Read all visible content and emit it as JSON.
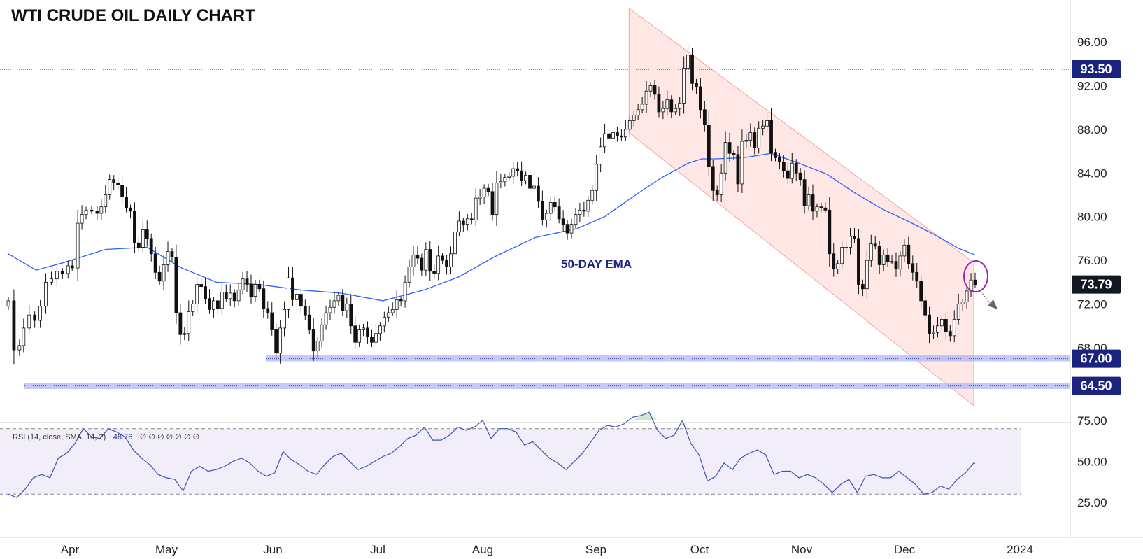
{
  "title": "WTI CRUDE OIL DAILY CHART",
  "chart_data": {
    "type": "candlestick",
    "title": "WTI CRUDE OIL DAILY CHART",
    "price_axis": {
      "ticks": [
        "96.00",
        "92.00",
        "88.00",
        "84.00",
        "80.00",
        "76.00",
        "72.00",
        "68.00"
      ]
    },
    "time_axis": {
      "ticks": [
        "Apr",
        "May",
        "Jun",
        "Jul",
        "Aug",
        "Sep",
        "Oct",
        "Nov",
        "Dec",
        "2024"
      ]
    },
    "levels": [
      {
        "label": "93.50",
        "value": 93.5
      },
      {
        "label": "67.00",
        "value": 67.0
      },
      {
        "label": "64.50",
        "value": 64.5
      }
    ],
    "last_price": {
      "label": "73.79",
      "value": 73.79
    },
    "ema_label": "50-DAY EMA",
    "price_series": [
      [
        0,
        72.3
      ],
      [
        8,
        67.8
      ],
      [
        16,
        68.2
      ],
      [
        22,
        69.8
      ],
      [
        30,
        71.0
      ],
      [
        38,
        70.5
      ],
      [
        46,
        71.8
      ],
      [
        54,
        74.0
      ],
      [
        62,
        74.3
      ],
      [
        70,
        75.0
      ],
      [
        78,
        74.8
      ],
      [
        86,
        75.5
      ],
      [
        92,
        75.3
      ],
      [
        100,
        79.4
      ],
      [
        106,
        80.2
      ],
      [
        112,
        80.6
      ],
      [
        120,
        80.5
      ],
      [
        128,
        80.3
      ],
      [
        134,
        80.9
      ],
      [
        140,
        82.0
      ],
      [
        146,
        83.4
      ],
      [
        152,
        83.1
      ],
      [
        158,
        82.9
      ],
      [
        164,
        81.8
      ],
      [
        170,
        80.8
      ],
      [
        176,
        80.5
      ],
      [
        182,
        77.6
      ],
      [
        188,
        77.2
      ],
      [
        194,
        78.8
      ],
      [
        200,
        78.0
      ],
      [
        206,
        76.6
      ],
      [
        212,
        74.9
      ],
      [
        218,
        74.1
      ],
      [
        224,
        75.6
      ],
      [
        230,
        76.8
      ],
      [
        236,
        76.3
      ],
      [
        242,
        71.2
      ],
      [
        248,
        69.2
      ],
      [
        254,
        69.3
      ],
      [
        260,
        71.3
      ],
      [
        266,
        72.0
      ],
      [
        272,
        73.8
      ],
      [
        278,
        73.6
      ],
      [
        284,
        72.5
      ],
      [
        290,
        71.5
      ],
      [
        296,
        72.3
      ],
      [
        302,
        71.6
      ],
      [
        308,
        73.1
      ],
      [
        314,
        72.5
      ],
      [
        320,
        73.0
      ],
      [
        326,
        72.3
      ],
      [
        332,
        73.3
      ],
      [
        338,
        74.3
      ],
      [
        344,
        73.8
      ],
      [
        350,
        72.7
      ],
      [
        356,
        73.8
      ],
      [
        362,
        73.4
      ],
      [
        368,
        71.6
      ],
      [
        374,
        71.2
      ],
      [
        380,
        69.7
      ],
      [
        386,
        67.5
      ],
      [
        392,
        69.8
      ],
      [
        398,
        71.5
      ],
      [
        404,
        74.4
      ],
      [
        410,
        72.4
      ],
      [
        416,
        72.9
      ],
      [
        422,
        71.8
      ],
      [
        428,
        71.0
      ],
      [
        434,
        69.7
      ],
      [
        440,
        67.7
      ],
      [
        446,
        68.6
      ],
      [
        452,
        70.1
      ],
      [
        458,
        71.2
      ],
      [
        464,
        71.7
      ],
      [
        470,
        72.3
      ],
      [
        476,
        72.8
      ],
      [
        482,
        71.4
      ],
      [
        488,
        72.0
      ],
      [
        494,
        70.0
      ],
      [
        500,
        68.5
      ],
      [
        506,
        69.7
      ],
      [
        512,
        69.8
      ],
      [
        518,
        69.0
      ],
      [
        524,
        68.5
      ],
      [
        530,
        69.3
      ],
      [
        536,
        70.0
      ],
      [
        542,
        70.8
      ],
      [
        548,
        71.2
      ],
      [
        554,
        71.5
      ],
      [
        560,
        72.4
      ],
      [
        566,
        72.3
      ],
      [
        572,
        74.0
      ],
      [
        578,
        75.4
      ],
      [
        584,
        76.5
      ],
      [
        590,
        76.2
      ],
      [
        596,
        75.1
      ],
      [
        602,
        77.0
      ],
      [
        608,
        75.0
      ],
      [
        614,
        74.8
      ],
      [
        620,
        76.4
      ],
      [
        626,
        76.0
      ],
      [
        632,
        75.4
      ],
      [
        638,
        76.6
      ],
      [
        644,
        78.6
      ],
      [
        650,
        79.6
      ],
      [
        656,
        79.3
      ],
      [
        662,
        79.8
      ],
      [
        668,
        79.7
      ],
      [
        674,
        81.7
      ],
      [
        680,
        81.8
      ],
      [
        686,
        82.6
      ],
      [
        692,
        82.3
      ],
      [
        698,
        80.2
      ],
      [
        704,
        83.1
      ],
      [
        710,
        83.2
      ],
      [
        716,
        83.6
      ],
      [
        722,
        83.7
      ],
      [
        728,
        84.4
      ],
      [
        734,
        84.2
      ],
      [
        740,
        83.3
      ],
      [
        746,
        83.8
      ],
      [
        752,
        82.6
      ],
      [
        758,
        82.8
      ],
      [
        764,
        81.4
      ],
      [
        770,
        79.7
      ],
      [
        776,
        80.3
      ],
      [
        782,
        81.3
      ],
      [
        788,
        80.9
      ],
      [
        794,
        79.8
      ],
      [
        800,
        79.3
      ],
      [
        806,
        78.5
      ],
      [
        812,
        79.3
      ],
      [
        818,
        80.2
      ],
      [
        824,
        80.6
      ],
      [
        830,
        80.5
      ],
      [
        836,
        81.5
      ],
      [
        842,
        82.4
      ],
      [
        848,
        84.8
      ],
      [
        854,
        86.4
      ],
      [
        860,
        87.6
      ],
      [
        866,
        87.2
      ],
      [
        872,
        87.7
      ],
      [
        878,
        87.4
      ],
      [
        884,
        87.3
      ],
      [
        890,
        88.0
      ],
      [
        896,
        88.8
      ],
      [
        902,
        89.3
      ],
      [
        908,
        89.8
      ],
      [
        914,
        90.3
      ],
      [
        920,
        91.5
      ],
      [
        926,
        92.0
      ],
      [
        932,
        91.2
      ],
      [
        938,
        89.6
      ],
      [
        944,
        89.9
      ],
      [
        950,
        90.7
      ],
      [
        956,
        89.6
      ],
      [
        962,
        89.9
      ],
      [
        968,
        90.4
      ],
      [
        974,
        93.6
      ],
      [
        980,
        94.8
      ],
      [
        986,
        92.2
      ],
      [
        992,
        91.9
      ],
      [
        998,
        89.8
      ],
      [
        1004,
        88.4
      ],
      [
        1010,
        84.6
      ],
      [
        1016,
        82.4
      ],
      [
        1022,
        82.0
      ],
      [
        1028,
        84.0
      ],
      [
        1034,
        86.8
      ],
      [
        1040,
        85.8
      ],
      [
        1046,
        85.7
      ],
      [
        1052,
        83.0
      ],
      [
        1058,
        86.9
      ],
      [
        1064,
        87.0
      ],
      [
        1070,
        87.7
      ],
      [
        1076,
        86.3
      ],
      [
        1082,
        88.1
      ],
      [
        1088,
        88.3
      ],
      [
        1094,
        88.8
      ],
      [
        1100,
        85.9
      ],
      [
        1106,
        85.4
      ],
      [
        1112,
        85.0
      ],
      [
        1118,
        84.2
      ],
      [
        1124,
        83.5
      ],
      [
        1130,
        84.9
      ],
      [
        1136,
        84.0
      ],
      [
        1142,
        83.4
      ],
      [
        1148,
        81.0
      ],
      [
        1154,
        82.0
      ],
      [
        1160,
        80.5
      ],
      [
        1166,
        80.9
      ],
      [
        1172,
        80.8
      ],
      [
        1178,
        80.6
      ],
      [
        1184,
        76.6
      ],
      [
        1190,
        75.2
      ],
      [
        1196,
        75.7
      ],
      [
        1202,
        77.2
      ],
      [
        1208,
        77.2
      ],
      [
        1214,
        78.2
      ],
      [
        1220,
        78.0
      ],
      [
        1226,
        73.8
      ],
      [
        1232,
        73.4
      ],
      [
        1238,
        76.0
      ],
      [
        1244,
        77.5
      ],
      [
        1250,
        77.3
      ],
      [
        1256,
        75.6
      ],
      [
        1262,
        76.5
      ],
      [
        1268,
        75.9
      ],
      [
        1274,
        75.9
      ],
      [
        1280,
        75.2
      ],
      [
        1286,
        76.4
      ],
      [
        1292,
        77.4
      ],
      [
        1298,
        75.7
      ],
      [
        1304,
        74.9
      ],
      [
        1310,
        74.1
      ],
      [
        1316,
        72.3
      ],
      [
        1322,
        71.0
      ],
      [
        1328,
        69.3
      ],
      [
        1334,
        69.4
      ],
      [
        1340,
        70.0
      ],
      [
        1346,
        70.6
      ],
      [
        1352,
        69.5
      ],
      [
        1358,
        69.1
      ],
      [
        1364,
        70.6
      ],
      [
        1370,
        72.0
      ],
      [
        1376,
        72.2
      ],
      [
        1382,
        73.2
      ],
      [
        1388,
        74.2
      ],
      [
        1394,
        73.79
      ]
    ],
    "ema50": [
      [
        0,
        76.6
      ],
      [
        40,
        75.1
      ],
      [
        80,
        75.8
      ],
      [
        140,
        77.0
      ],
      [
        200,
        77.2
      ],
      [
        250,
        75.3
      ],
      [
        300,
        74.0
      ],
      [
        360,
        73.8
      ],
      [
        420,
        73.3
      ],
      [
        480,
        73.0
      ],
      [
        540,
        72.3
      ],
      [
        600,
        73.3
      ],
      [
        650,
        74.5
      ],
      [
        700,
        76.3
      ],
      [
        760,
        78.1
      ],
      [
        820,
        78.9
      ],
      [
        860,
        80.0
      ],
      [
        900,
        81.8
      ],
      [
        940,
        83.5
      ],
      [
        980,
        84.9
      ],
      [
        1000,
        85.3
      ],
      [
        1020,
        85.3
      ],
      [
        1060,
        85.4
      ],
      [
        1100,
        85.8
      ],
      [
        1140,
        84.9
      ],
      [
        1180,
        83.9
      ],
      [
        1220,
        82.2
      ],
      [
        1260,
        80.7
      ],
      [
        1300,
        79.5
      ],
      [
        1340,
        78.2
      ],
      [
        1370,
        77.1
      ],
      [
        1394,
        76.5
      ]
    ],
    "rsi": {
      "legend": "RSI (14, close, SMA, 14, 2)",
      "value": "48.76",
      "extra": "∅ ∅ ∅ ∅ ∅ ∅ ∅",
      "ticks": [
        "75.00",
        "50.00",
        "25.00"
      ],
      "upper_band": 70,
      "lower_band": 30,
      "series": [
        [
          0,
          30.0
        ],
        [
          12,
          28.0
        ],
        [
          24,
          33.0
        ],
        [
          36,
          40.0
        ],
        [
          48,
          42.0
        ],
        [
          60,
          40.0
        ],
        [
          72,
          52.0
        ],
        [
          84,
          55.0
        ],
        [
          96,
          61.0
        ],
        [
          108,
          70.0
        ],
        [
          120,
          65.0
        ],
        [
          132,
          64.0
        ],
        [
          144,
          70.0
        ],
        [
          156,
          68.0
        ],
        [
          168,
          65.0
        ],
        [
          180,
          57.0
        ],
        [
          192,
          52.0
        ],
        [
          204,
          48.0
        ],
        [
          216,
          42.0
        ],
        [
          228,
          40.0
        ],
        [
          240,
          39.0
        ],
        [
          252,
          32.0
        ],
        [
          264,
          44.0
        ],
        [
          276,
          47.0
        ],
        [
          288,
          44.0
        ],
        [
          300,
          45.0
        ],
        [
          312,
          47.0
        ],
        [
          324,
          50.0
        ],
        [
          336,
          52.0
        ],
        [
          348,
          49.0
        ],
        [
          360,
          44.0
        ],
        [
          372,
          41.0
        ],
        [
          384,
          43.0
        ],
        [
          396,
          56.0
        ],
        [
          408,
          51.0
        ],
        [
          420,
          48.0
        ],
        [
          432,
          44.0
        ],
        [
          444,
          42.0
        ],
        [
          456,
          48.0
        ],
        [
          468,
          53.0
        ],
        [
          480,
          55.0
        ],
        [
          492,
          50.0
        ],
        [
          504,
          45.0
        ],
        [
          516,
          47.0
        ],
        [
          528,
          50.0
        ],
        [
          540,
          53.0
        ],
        [
          552,
          55.0
        ],
        [
          564,
          59.0
        ],
        [
          576,
          64.0
        ],
        [
          588,
          66.0
        ],
        [
          600,
          71.0
        ],
        [
          612,
          63.0
        ],
        [
          624,
          63.0
        ],
        [
          636,
          66.0
        ],
        [
          648,
          71.0
        ],
        [
          660,
          69.0
        ],
        [
          672,
          71.0
        ],
        [
          684,
          75.0
        ],
        [
          696,
          64.0
        ],
        [
          708,
          70.0
        ],
        [
          720,
          70.0
        ],
        [
          732,
          68.0
        ],
        [
          744,
          60.0
        ],
        [
          756,
          62.0
        ],
        [
          768,
          57.0
        ],
        [
          780,
          52.0
        ],
        [
          792,
          49.0
        ],
        [
          804,
          45.0
        ],
        [
          816,
          50.0
        ],
        [
          828,
          55.0
        ],
        [
          840,
          62.0
        ],
        [
          852,
          69.0
        ],
        [
          864,
          72.0
        ],
        [
          876,
          71.0
        ],
        [
          888,
          73.0
        ],
        [
          900,
          77.0
        ],
        [
          912,
          78.0
        ],
        [
          924,
          80.0
        ],
        [
          936,
          69.0
        ],
        [
          948,
          64.0
        ],
        [
          960,
          66.0
        ],
        [
          972,
          75.0
        ],
        [
          984,
          61.0
        ],
        [
          996,
          54.0
        ],
        [
          1008,
          38.0
        ],
        [
          1020,
          41.0
        ],
        [
          1032,
          49.0
        ],
        [
          1044,
          45.0
        ],
        [
          1056,
          52.0
        ],
        [
          1068,
          55.0
        ],
        [
          1080,
          57.0
        ],
        [
          1092,
          54.0
        ],
        [
          1104,
          42.0
        ],
        [
          1116,
          44.0
        ],
        [
          1128,
          44.0
        ],
        [
          1140,
          40.0
        ],
        [
          1152,
          42.0
        ],
        [
          1164,
          40.0
        ],
        [
          1176,
          36.0
        ],
        [
          1188,
          31.0
        ],
        [
          1200,
          36.0
        ],
        [
          1212,
          39.0
        ],
        [
          1224,
          31.0
        ],
        [
          1236,
          41.0
        ],
        [
          1248,
          42.0
        ],
        [
          1260,
          40.0
        ],
        [
          1272,
          40.0
        ],
        [
          1284,
          44.0
        ],
        [
          1296,
          40.0
        ],
        [
          1308,
          36.0
        ],
        [
          1320,
          30.0
        ],
        [
          1332,
          31.0
        ],
        [
          1344,
          35.0
        ],
        [
          1356,
          33.0
        ],
        [
          1368,
          39.0
        ],
        [
          1380,
          43.0
        ],
        [
          1392,
          49.0
        ],
        [
          1394,
          48.76
        ]
      ]
    }
  }
}
